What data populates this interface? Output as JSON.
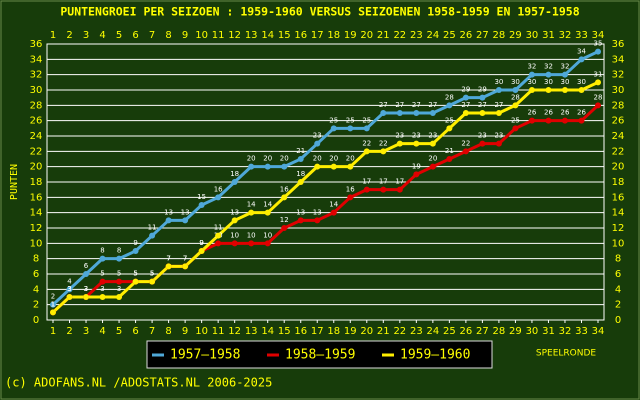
{
  "chart_data": {
    "type": "line",
    "title": "PUNTENGROEI PER SEIZOEN : 1959-1960 VERSUS SEIZOENEN 1958-1959 EN 1957-1958",
    "y_label": "PUNTEN",
    "x_label": "SPEELRONDE",
    "footer": "(c) ADOFANS.NL /ADOSTATS.NL 2006-2025",
    "x": [
      1,
      2,
      3,
      4,
      5,
      6,
      7,
      8,
      9,
      10,
      11,
      12,
      13,
      14,
      15,
      16,
      17,
      18,
      19,
      20,
      21,
      22,
      23,
      24,
      25,
      26,
      27,
      28,
      29,
      30,
      31,
      32,
      33,
      34
    ],
    "xlim": [
      1,
      34
    ],
    "xticks": [
      1,
      2,
      3,
      4,
      5,
      6,
      7,
      8,
      9,
      10,
      11,
      12,
      13,
      14,
      15,
      16,
      17,
      18,
      19,
      20,
      21,
      22,
      23,
      24,
      25,
      26,
      27,
      28,
      29,
      30,
      31,
      32,
      33,
      34
    ],
    "ylim": [
      0,
      36
    ],
    "yticks": [
      0,
      2,
      4,
      6,
      8,
      10,
      12,
      14,
      16,
      18,
      20,
      22,
      24,
      26,
      28,
      30,
      32,
      34,
      36
    ],
    "grid": true,
    "series": [
      {
        "name": "1957–1958",
        "color": "#4fa8d8",
        "values": [
          2,
          4,
          6,
          8,
          8,
          9,
          11,
          13,
          13,
          15,
          16,
          18,
          20,
          20,
          20,
          21,
          23,
          25,
          25,
          25,
          27,
          27,
          27,
          27,
          28,
          29,
          29,
          30,
          30,
          32,
          32,
          32,
          34,
          35
        ]
      },
      {
        "name": "1958–1959",
        "color": "#e00000",
        "values": [
          1,
          3,
          3,
          5,
          5,
          5,
          5,
          7,
          7,
          9,
          10,
          10,
          10,
          10,
          12,
          13,
          13,
          14,
          16,
          17,
          17,
          17,
          19,
          20,
          21,
          22,
          23,
          23,
          25,
          26,
          26,
          26,
          26,
          28
        ]
      },
      {
        "name": "1959–1960",
        "color": "#ffee00",
        "values": [
          1,
          3,
          3,
          3,
          3,
          5,
          5,
          7,
          7,
          9,
          11,
          13,
          14,
          14,
          16,
          18,
          20,
          20,
          20,
          22,
          22,
          23,
          23,
          23,
          25,
          27,
          27,
          27,
          28,
          30,
          30,
          30,
          30,
          31
        ]
      }
    ]
  }
}
